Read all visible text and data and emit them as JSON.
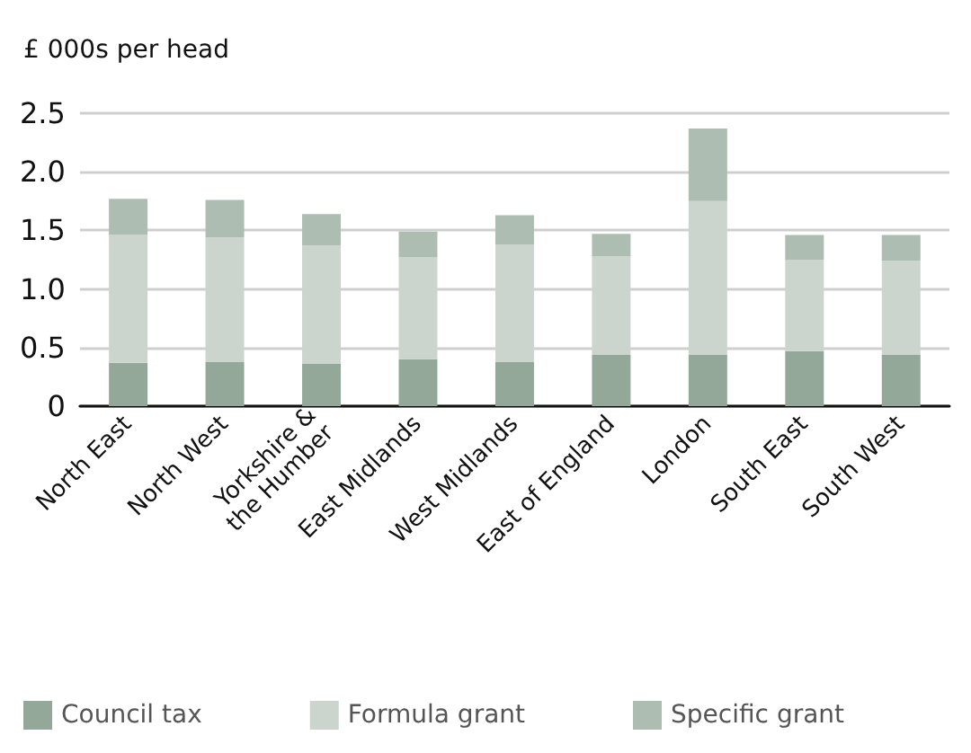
{
  "chart_data": {
    "type": "bar",
    "stacked": true,
    "ylabel": "£ 000s per head",
    "categories": [
      "North East",
      "North West",
      "Yorkshire &\nthe Humber",
      "East Midlands",
      "West Midlands",
      "East of England",
      "London",
      "South East",
      "South West"
    ],
    "series": [
      {
        "name": "Council tax",
        "color": "#94a89a",
        "values": [
          0.37,
          0.38,
          0.36,
          0.4,
          0.38,
          0.44,
          0.44,
          0.47,
          0.44
        ]
      },
      {
        "name": "Formula grant",
        "color": "#cbd5cd",
        "values": [
          1.09,
          1.06,
          1.01,
          0.87,
          1.0,
          0.84,
          1.31,
          0.78,
          0.8
        ]
      },
      {
        "name": "Specific grant",
        "color": "#adbdb2",
        "values": [
          0.31,
          0.32,
          0.27,
          0.22,
          0.25,
          0.19,
          0.62,
          0.21,
          0.22
        ]
      }
    ],
    "ylim": [
      0,
      2.5
    ],
    "yticks": [
      0,
      0.5,
      "1.0",
      1.5,
      "2.0",
      2.5
    ],
    "grid": "y",
    "legend": "bottom"
  }
}
